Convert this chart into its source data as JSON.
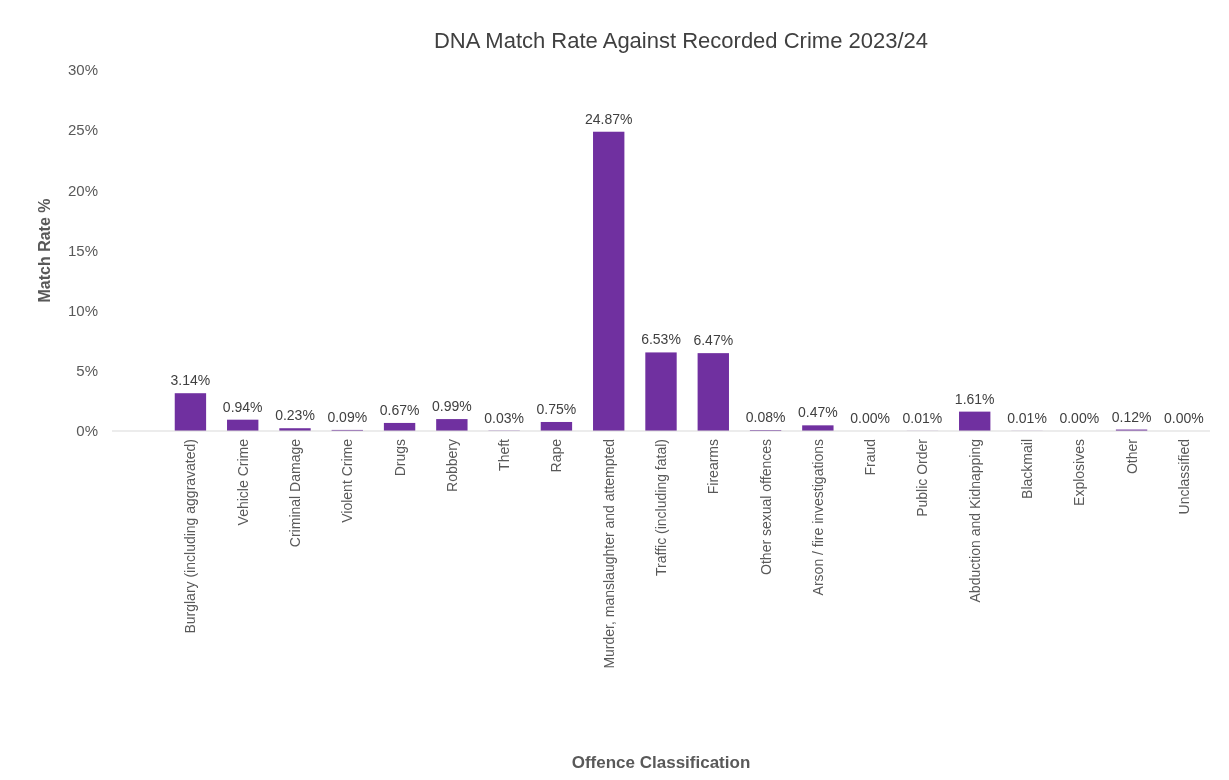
{
  "chart_data": {
    "type": "bar",
    "title": "DNA Match Rate Against Recorded Crime 2023/24",
    "xlabel": "Offence Classification",
    "ylabel": "Match Rate %",
    "categories": [
      null,
      "Burglary (including aggravated)",
      "Vehicle Crime",
      "Criminal Damage",
      "Violent Crime",
      "Drugs",
      "Robbery",
      "Theft",
      "Rape",
      "Murder, manslaughter and attempted",
      "Traffic (including fatal)",
      "Firearms",
      "Other sexual offences",
      "Arson / fire investigations",
      "Fraud",
      "Public Order",
      "Abduction and Kidnapping",
      "Blackmail",
      "Explosives",
      "Other",
      "Unclassified"
    ],
    "values": [
      null,
      3.14,
      0.94,
      0.23,
      0.09,
      0.67,
      0.99,
      0.03,
      0.75,
      24.87,
      6.53,
      6.47,
      0.08,
      0.47,
      0.0,
      0.01,
      1.61,
      0.01,
      0.0,
      0.12,
      0.0
    ],
    "value_labels": [
      null,
      "3.14%",
      "0.94%",
      "0.23%",
      "0.09%",
      "0.67%",
      "0.99%",
      "0.03%",
      "0.75%",
      "24.87%",
      "6.53%",
      "6.47%",
      "0.08%",
      "0.47%",
      "0.00%",
      "0.01%",
      "1.61%",
      "0.01%",
      "0.00%",
      "0.12%",
      "0.00%"
    ],
    "color": "#7030a0",
    "ylim": [
      0,
      30
    ],
    "yticks": [
      {
        "value": 0,
        "label": "0%"
      },
      {
        "value": 5,
        "label": "5%"
      },
      {
        "value": 10,
        "label": "10%"
      },
      {
        "value": 15,
        "label": "15%"
      },
      {
        "value": 20,
        "label": "20%"
      },
      {
        "value": 25,
        "label": "25%"
      },
      {
        "value": 30,
        "label": "30%"
      }
    ]
  }
}
